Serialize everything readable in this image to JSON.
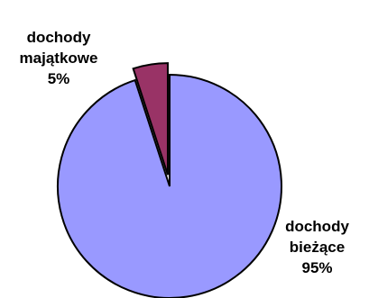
{
  "chart_data": {
    "type": "pie",
    "title": "",
    "slices": [
      {
        "label_lines": [
          "dochody",
          "majątkowe"
        ],
        "value": 5,
        "value_label": "5%",
        "color": "#993366",
        "exploded": true
      },
      {
        "label_lines": [
          "dochody",
          "bieżące"
        ],
        "value": 95,
        "value_label": "95%",
        "color": "#9999ff",
        "exploded": false
      }
    ],
    "start_angle_deg": 0,
    "direction": "counterclockwise",
    "legend": "none",
    "outline_color": "#000000"
  }
}
